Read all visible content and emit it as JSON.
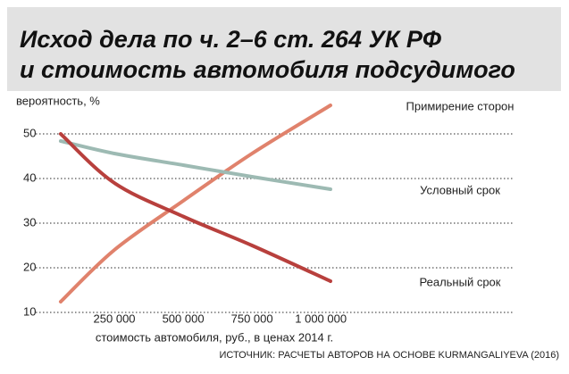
{
  "chart_data": {
    "type": "line",
    "title": "Исход дела по ч. 2–6 ст. 264 УК РФ",
    "subtitle": "и стоимость автомобиля подсудимого",
    "y_label": "вероятность, %",
    "x_label": "стоимость автомобиля, руб., в ценах 2014 г.",
    "source": "ИСТОЧНИК: РАСЧЕТЫ АВТОРОВ НА ОСНОВЕ KURMANGALIYEVA (2016)",
    "x": [
      55000,
      250000,
      500000,
      750000,
      1035000
    ],
    "series": [
      {
        "name": "Примирение сторон",
        "color": "#e0826c",
        "values": [
          12.4,
          24,
          35,
          45.6,
          56.4
        ]
      },
      {
        "name": "Условный срок",
        "color": "#9dbab3",
        "values": [
          48.4,
          45.6,
          43,
          40.4,
          37.6
        ]
      },
      {
        "name": "Реальный срок",
        "color": "#b8403d",
        "values": [
          50,
          39,
          31.5,
          25,
          17
        ]
      }
    ],
    "xlim": [
      0,
      1100000
    ],
    "ylim": [
      8,
      58
    ],
    "xticks": [
      {
        "value": 250000,
        "label": "250 000"
      },
      {
        "value": 500000,
        "label": "500 000"
      },
      {
        "value": 750000,
        "label": "750 000"
      },
      {
        "value": 1000000,
        "label": "1 000 000"
      }
    ],
    "yticks": [
      10,
      20,
      30,
      40,
      50
    ],
    "grid": true
  }
}
